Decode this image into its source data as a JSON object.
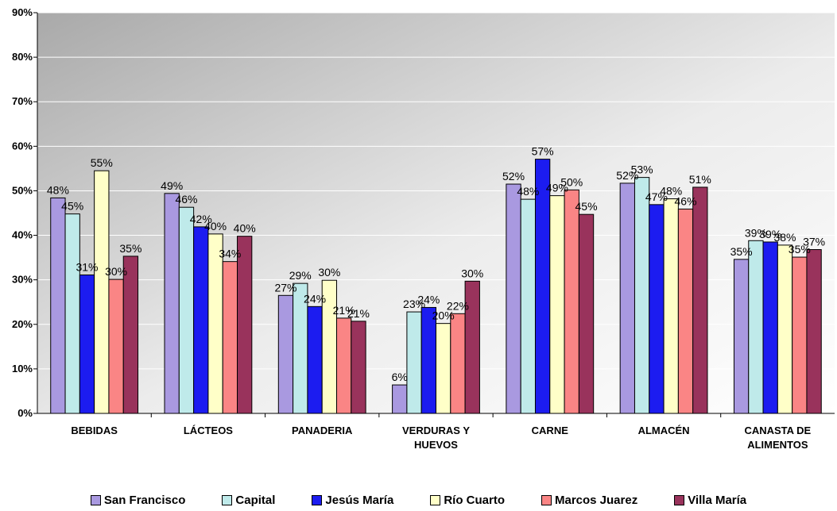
{
  "chart_data": {
    "type": "bar",
    "categories": [
      [
        "BEBIDAS"
      ],
      [
        "LÁCTEOS"
      ],
      [
        "PANADERIA"
      ],
      [
        "VERDURAS Y",
        "HUEVOS"
      ],
      [
        "CARNE"
      ],
      [
        "ALMACÉN"
      ],
      [
        "CANASTA DE",
        "ALIMENTOS"
      ]
    ],
    "ylim": [
      0,
      90
    ],
    "yticks": [
      "0%",
      "10%",
      "20%",
      "30%",
      "40%",
      "50%",
      "60%",
      "70%",
      "80%",
      "90%"
    ],
    "grid": true,
    "legend_position": "bottom",
    "series": [
      {
        "name": "San Francisco",
        "color": "#a999e0",
        "values": [
          48.4,
          49.4,
          26.5,
          6.4,
          51.5,
          51.7,
          34.6
        ],
        "labels": [
          "48%",
          "49%",
          "27%",
          "6%",
          "52%",
          "52%",
          "35%"
        ]
      },
      {
        "name": "Capital",
        "color": "#bfeaea",
        "values": [
          44.8,
          46.3,
          29.2,
          22.8,
          48.1,
          53.0,
          38.8
        ],
        "labels": [
          "45%",
          "46%",
          "29%",
          "23%",
          "48%",
          "53%",
          "39%"
        ]
      },
      {
        "name": "Jesús María",
        "color": "#1c1cf0",
        "values": [
          31.1,
          41.9,
          24.0,
          23.8,
          57.1,
          46.9,
          38.5
        ],
        "labels": [
          "31%",
          "42%",
          "24%",
          "24%",
          "57%",
          "47%",
          "39%"
        ]
      },
      {
        "name": "Río Cuarto",
        "color": "#ffffc8",
        "values": [
          54.5,
          40.3,
          29.9,
          20.2,
          48.9,
          48.2,
          37.8
        ],
        "labels": [
          "55%",
          "40%",
          "30%",
          "20%",
          "49%",
          "48%",
          "38%"
        ]
      },
      {
        "name": "Marcos Juarez",
        "color": "#fa8585",
        "values": [
          30.1,
          34.1,
          21.4,
          22.4,
          50.2,
          45.9,
          35.1
        ],
        "labels": [
          "30%",
          "34%",
          "21%",
          "22%",
          "50%",
          "46%",
          "35%"
        ]
      },
      {
        "name": "Villa María",
        "color": "#99335c",
        "values": [
          35.3,
          39.8,
          20.7,
          29.7,
          44.7,
          50.8,
          36.8
        ],
        "labels": [
          "35%",
          "40%",
          "21%",
          "30%",
          "45%",
          "51%",
          "37%"
        ]
      }
    ]
  }
}
